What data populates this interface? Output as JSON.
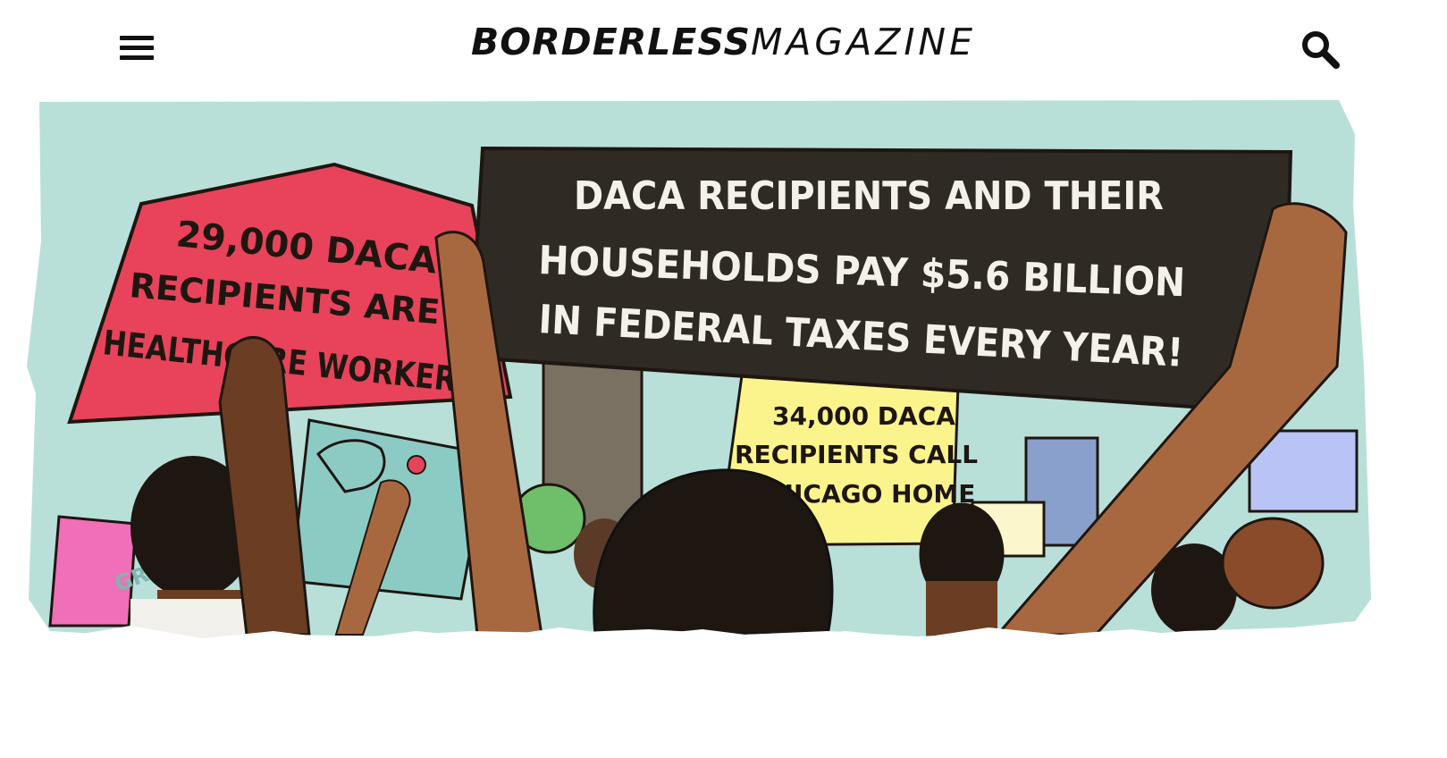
{
  "header": {
    "brand_bold": "BORDERLESS",
    "brand_light": "MAGAZINE",
    "menu_icon": "hamburger-menu-icon",
    "search_icon": "search-icon"
  },
  "hero": {
    "signs": {
      "pink_line1": "29,000 DACA",
      "pink_line2": "RECIPIENTS ARE",
      "pink_line3": "HEALTHCARE WORKERS",
      "dark_line1": "DACA RECIPIENTS AND THEIR",
      "dark_line2": "HOUSEHOLDS PAY $5.6 BILLION",
      "dark_line3": "IN FEDERAL TAXES EVERY YEAR!",
      "yellow_line1": "34,000 DACA",
      "yellow_line2": "RECIPIENTS CALL",
      "yellow_line3": "CHICAGO HOME",
      "artist_mark": "GR"
    },
    "colors": {
      "sky": "#b9dfd9",
      "pink_sign": "#e8435a",
      "dark_sign": "#2f2b24",
      "yellow_sign": "#fbf48c",
      "teal_sign": "#8ccbc4",
      "skin_dark": "#6b3d22",
      "skin_medium": "#a8683f",
      "hair": "#1e1611"
    }
  }
}
